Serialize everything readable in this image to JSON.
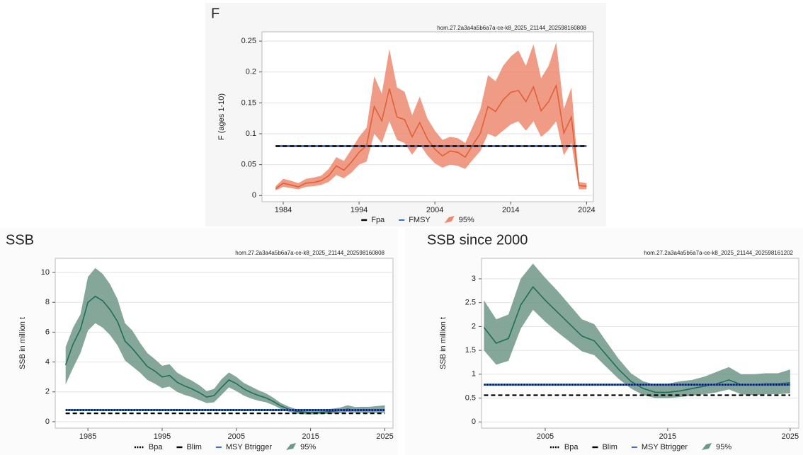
{
  "chart_data": [
    {
      "type": "line",
      "title": "F",
      "subtitle": "hom.27.2a3a4a5b6a7a-ce-k8_2025_21144_202598160808",
      "y_label": "F (ages 1-10)",
      "x": [
        1983,
        1984,
        1985,
        1986,
        1987,
        1988,
        1989,
        1990,
        1991,
        1992,
        1993,
        1994,
        1995,
        1996,
        1997,
        1998,
        1999,
        2000,
        2001,
        2002,
        2003,
        2004,
        2005,
        2006,
        2007,
        2008,
        2009,
        2010,
        2011,
        2012,
        2013,
        2014,
        2015,
        2016,
        2017,
        2018,
        2019,
        2020,
        2021,
        2022,
        2023,
        2024
      ],
      "xlim": [
        1981.2,
        2024.9
      ],
      "xticks": [
        1984,
        1994,
        2004,
        2014,
        2024
      ],
      "ylim": [
        -0.01,
        0.265
      ],
      "yticks": [
        0,
        0.05,
        0.1,
        0.15,
        0.2,
        0.25
      ],
      "grid": true,
      "title_color": "#e0603a",
      "series": [
        {
          "color": "#e0603a",
          "values": [
            0.011,
            0.02,
            0.017,
            0.014,
            0.02,
            0.021,
            0.024,
            0.032,
            0.048,
            0.041,
            0.054,
            0.07,
            0.081,
            0.144,
            0.121,
            0.173,
            0.127,
            0.123,
            0.095,
            0.118,
            0.092,
            0.075,
            0.064,
            0.072,
            0.07,
            0.062,
            0.082,
            0.101,
            0.144,
            0.136,
            0.155,
            0.167,
            0.17,
            0.152,
            0.176,
            0.137,
            0.152,
            0.178,
            0.101,
            0.127,
            0.016,
            0.015
          ]
        }
      ],
      "band": {
        "name": "95%",
        "color": "#ec8a70",
        "low": [
          0.008,
          0.014,
          0.012,
          0.01,
          0.014,
          0.015,
          0.017,
          0.022,
          0.033,
          0.028,
          0.037,
          0.05,
          0.055,
          0.1,
          0.085,
          0.12,
          0.09,
          0.085,
          0.066,
          0.083,
          0.065,
          0.052,
          0.045,
          0.05,
          0.048,
          0.043,
          0.058,
          0.072,
          0.1,
          0.095,
          0.105,
          0.115,
          0.12,
          0.105,
          0.12,
          0.095,
          0.105,
          0.12,
          0.065,
          0.085,
          0.01,
          0.01
        ],
        "high": [
          0.015,
          0.027,
          0.024,
          0.02,
          0.027,
          0.029,
          0.032,
          0.043,
          0.062,
          0.056,
          0.075,
          0.095,
          0.11,
          0.193,
          0.165,
          0.237,
          0.175,
          0.168,
          0.13,
          0.16,
          0.125,
          0.105,
          0.09,
          0.095,
          0.093,
          0.085,
          0.112,
          0.14,
          0.195,
          0.185,
          0.21,
          0.225,
          0.235,
          0.21,
          0.245,
          0.19,
          0.21,
          0.248,
          0.14,
          0.175,
          0.022,
          0.02
        ]
      },
      "reference_lines": [
        {
          "name": "Fpa",
          "value": 0.08,
          "color": "#000000",
          "dash": "dashed"
        },
        {
          "name": "FMSY",
          "value": 0.08,
          "color": "#3a6fd0",
          "dash": "solid"
        }
      ]
    },
    {
      "type": "line",
      "title": "SSB",
      "subtitle": "hom.27.2a3a4a5b6a7a-ce-k8_2025_21144_202598160808",
      "y_label": "SSB in million t",
      "x": [
        1982,
        1983,
        1984,
        1985,
        1986,
        1987,
        1988,
        1989,
        1990,
        1991,
        1992,
        1993,
        1994,
        1995,
        1996,
        1997,
        1998,
        1999,
        2000,
        2001,
        2002,
        2003,
        2004,
        2005,
        2006,
        2007,
        2008,
        2009,
        2010,
        2011,
        2012,
        2013,
        2014,
        2015,
        2016,
        2017,
        2018,
        2019,
        2020,
        2021,
        2022,
        2023,
        2024,
        2025
      ],
      "xlim": [
        1980.6,
        2026.1
      ],
      "xticks": [
        1985,
        1995,
        2005,
        2015,
        2025
      ],
      "ylim": [
        -0.43,
        10.95
      ],
      "yticks": [
        0,
        2,
        4,
        6,
        8,
        10
      ],
      "grid": true,
      "title_color": "#2a8a72",
      "series": [
        {
          "color": "#1f6e5a",
          "values": [
            3.8,
            5.2,
            6.2,
            8.0,
            8.4,
            8.1,
            7.5,
            6.7,
            5.4,
            4.9,
            4.3,
            3.7,
            3.4,
            3.0,
            3.1,
            2.65,
            2.4,
            2.2,
            1.95,
            1.65,
            1.75,
            2.3,
            2.8,
            2.55,
            2.2,
            1.95,
            1.75,
            1.6,
            1.35,
            1.05,
            0.85,
            0.7,
            0.65,
            0.6,
            0.62,
            0.65,
            0.7,
            0.75,
            0.85,
            0.78,
            0.78,
            0.78,
            0.8,
            0.82
          ]
        }
      ],
      "band": {
        "name": "95%",
        "color": "#6e9887",
        "low": [
          2.5,
          3.6,
          4.6,
          6.1,
          6.6,
          6.3,
          5.8,
          5.1,
          4.1,
          3.7,
          3.3,
          2.8,
          2.55,
          2.25,
          2.35,
          2.0,
          1.8,
          1.65,
          1.45,
          1.25,
          1.3,
          1.8,
          2.3,
          2.05,
          1.75,
          1.55,
          1.4,
          1.3,
          1.1,
          0.85,
          0.68,
          0.55,
          0.5,
          0.48,
          0.5,
          0.52,
          0.55,
          0.58,
          0.65,
          0.6,
          0.6,
          0.58,
          0.6,
          0.6
        ],
        "high": [
          5.0,
          6.3,
          7.2,
          9.7,
          10.3,
          9.9,
          9.2,
          8.2,
          6.6,
          6.1,
          5.3,
          4.6,
          4.2,
          3.75,
          3.85,
          3.3,
          3.0,
          2.75,
          2.45,
          2.05,
          2.2,
          2.85,
          3.3,
          3.0,
          2.6,
          2.35,
          2.1,
          1.9,
          1.6,
          1.25,
          1.02,
          0.85,
          0.8,
          0.75,
          0.78,
          0.82,
          0.88,
          0.95,
          1.1,
          0.98,
          1.0,
          1.0,
          1.05,
          1.1
        ]
      },
      "reference_lines": [
        {
          "name": "Bpa",
          "value": 0.78,
          "color": "#000000",
          "dash": "dotted"
        },
        {
          "name": "Blim",
          "value": 0.56,
          "color": "#000000",
          "dash": "dashed"
        },
        {
          "name": "MSY Btrigger",
          "value": 0.78,
          "color": "#3a6fd0",
          "dash": "solid"
        }
      ]
    },
    {
      "type": "line",
      "title": "SSB since 2000",
      "subtitle": "hom.27.2a3a4a5b6a7a-ce-k8_2025_21144_202598161202",
      "y_label": "SSB in million t",
      "x": [
        2000,
        2001,
        2002,
        2003,
        2004,
        2005,
        2006,
        2007,
        2008,
        2009,
        2010,
        2011,
        2012,
        2013,
        2014,
        2015,
        2016,
        2017,
        2018,
        2019,
        2020,
        2021,
        2022,
        2023,
        2024,
        2025
      ],
      "xlim": [
        1999.8,
        2025.7
      ],
      "xticks": [
        2005,
        2015,
        2025
      ],
      "ylim": [
        -0.13,
        3.43
      ],
      "yticks": [
        0,
        0.5,
        1,
        1.5,
        2,
        2.5,
        3
      ],
      "grid": true,
      "title_color": "#2a8a72",
      "series": [
        {
          "color": "#1f6e5a",
          "values": [
            1.98,
            1.65,
            1.75,
            2.45,
            2.83,
            2.55,
            2.3,
            2.05,
            1.8,
            1.7,
            1.4,
            1.1,
            0.85,
            0.7,
            0.62,
            0.62,
            0.65,
            0.7,
            0.75,
            0.8,
            0.88,
            0.78,
            0.78,
            0.8,
            0.8,
            0.82
          ]
        }
      ],
      "band": {
        "name": "95%",
        "color": "#6e9887",
        "low": [
          1.5,
          1.2,
          1.28,
          1.95,
          2.35,
          2.1,
          1.88,
          1.68,
          1.48,
          1.4,
          1.15,
          0.9,
          0.7,
          0.56,
          0.5,
          0.5,
          0.52,
          0.55,
          0.58,
          0.62,
          0.68,
          0.58,
          0.56,
          0.58,
          0.58,
          0.6
        ],
        "high": [
          2.55,
          2.15,
          2.25,
          3.0,
          3.32,
          3.02,
          2.75,
          2.45,
          2.15,
          2.05,
          1.68,
          1.32,
          1.02,
          0.85,
          0.78,
          0.8,
          0.85,
          0.88,
          0.95,
          1.05,
          1.15,
          1.0,
          1.0,
          1.02,
          1.02,
          1.1
        ]
      },
      "reference_lines": [
        {
          "name": "Bpa",
          "value": 0.78,
          "color": "#000000",
          "dash": "dotted"
        },
        {
          "name": "Blim",
          "value": 0.56,
          "color": "#000000",
          "dash": "dashed"
        },
        {
          "name": "MSY Btrigger",
          "value": 0.78,
          "color": "#3a6fd0",
          "dash": "solid"
        }
      ]
    }
  ]
}
